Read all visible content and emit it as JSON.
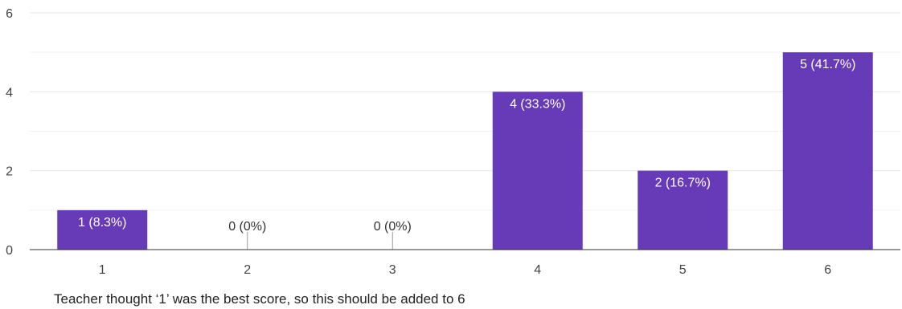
{
  "chart_data": {
    "type": "bar",
    "categories": [
      "1",
      "2",
      "3",
      "4",
      "5",
      "6"
    ],
    "values": [
      1,
      0,
      0,
      4,
      2,
      5
    ],
    "data_labels": [
      "1 (8.3%)",
      "0 (0%)",
      "0 (0%)",
      "4 (33.3%)",
      "2 (16.7%)",
      "5 (41.7%)"
    ],
    "y_ticks": [
      "0",
      "2",
      "4",
      "6"
    ],
    "ylim": [
      0,
      6
    ],
    "grid": true,
    "bar_color": "#673ab7",
    "title": "",
    "xlabel": "",
    "ylabel": ""
  },
  "note": "Teacher thought ‘1’ was the best score, so this should be added to 6"
}
